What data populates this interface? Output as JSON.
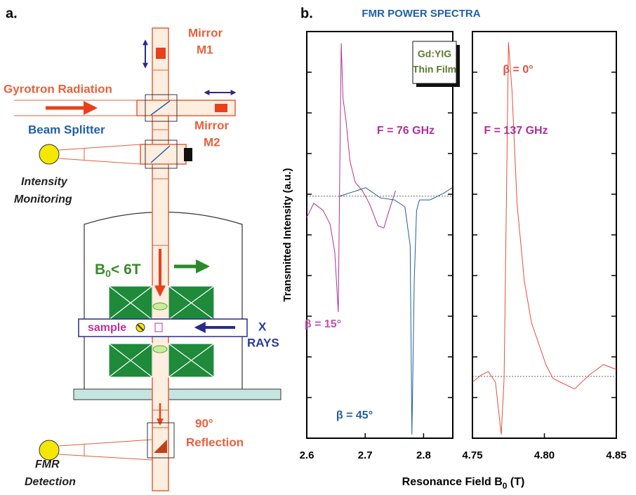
{
  "panel_a": {
    "label": "a.",
    "mirror_m1": [
      "Mirror",
      "M1"
    ],
    "gyrotron": "Gyrotron Radiation",
    "beam_splitter": "Beam Splitter",
    "mirror_m2": [
      "Mirror",
      "M2"
    ],
    "monitoring": [
      "Intensity",
      "Monitoring"
    ],
    "field": [
      "B",
      "0",
      "< 6T"
    ],
    "sample": "sample",
    "xrays": [
      "X",
      "RAYS"
    ],
    "reflection": [
      "90°",
      "Reflection"
    ],
    "detection": [
      "FMR",
      "Detection"
    ]
  },
  "panel_b": {
    "label": "b.",
    "title": "FMR  POWER SPECTRA",
    "y_label": "Transmitted Intensity (a.u.)",
    "x_label": [
      "Resonance Field  B",
      "0",
      " (T)"
    ],
    "legend": [
      "Gd:YIG",
      "Thin Film"
    ]
  },
  "chart_data": [
    {
      "type": "line",
      "xlim": [
        2.6,
        2.85
      ],
      "xticks": [
        2.6,
        2.7,
        2.8
      ],
      "ylim": [
        0,
        10
      ],
      "yticks": [
        0,
        1,
        2,
        3,
        4,
        5,
        6,
        7,
        8,
        9,
        10
      ],
      "baseline": 5.95,
      "annotations": [
        "F = 76 GHz",
        "β = 15°",
        "β = 45°"
      ],
      "series": [
        {
          "name": "β = 15°",
          "color": "#b0309a",
          "x": [
            2.6,
            2.612,
            2.628,
            2.64,
            2.648,
            2.654,
            2.656,
            2.659,
            2.662,
            2.667,
            2.674,
            2.683,
            2.695,
            2.707,
            2.722,
            2.732,
            2.741,
            2.752
          ],
          "values": [
            5.43,
            5.78,
            5.6,
            5.26,
            4.57,
            3.1,
            5.95,
            9.71,
            8.36,
            7.84,
            6.81,
            6.29,
            6.09,
            5.78,
            5.22,
            5.17,
            5.6,
            6.09
          ]
        },
        {
          "name": "β = 45°",
          "color": "#1f5f9a",
          "x": [
            2.656,
            2.701,
            2.726,
            2.75,
            2.768,
            2.777,
            2.78,
            2.784,
            2.788,
            2.793,
            2.811,
            2.835,
            2.849
          ],
          "values": [
            5.95,
            6.16,
            5.91,
            5.86,
            5.69,
            4.74,
            0.09,
            3.88,
            5.6,
            5.86,
            5.86,
            6.03,
            6.16
          ]
        }
      ]
    },
    {
      "type": "line",
      "xlim": [
        4.75,
        4.85
      ],
      "xticks": [
        4.75,
        {
          "value": 4.8,
          "label": "4.80"
        },
        4.85
      ],
      "ylim": [
        0,
        10
      ],
      "yticks": [
        0,
        1,
        2,
        3,
        4,
        5,
        6,
        7,
        8,
        9,
        10
      ],
      "baseline": 1.52,
      "annotations": [
        "F = 137 GHz",
        "β = 0°"
      ],
      "series": [
        {
          "name": "β = 0°",
          "color": "#e0503a",
          "x": [
            4.75,
            4.756,
            4.761,
            4.766,
            4.77,
            4.772,
            4.7735,
            4.775,
            4.7775,
            4.781,
            4.786,
            4.791,
            4.796,
            4.801,
            4.806,
            4.811,
            4.821,
            4.831,
            4.841,
            4.85
          ],
          "values": [
            1.38,
            1.55,
            1.64,
            1.38,
            0.09,
            1.47,
            5.6,
            9.74,
            8.53,
            5.78,
            3.88,
            2.84,
            2.33,
            1.81,
            1.47,
            1.38,
            1.21,
            1.55,
            1.81,
            1.69
          ]
        }
      ]
    }
  ]
}
